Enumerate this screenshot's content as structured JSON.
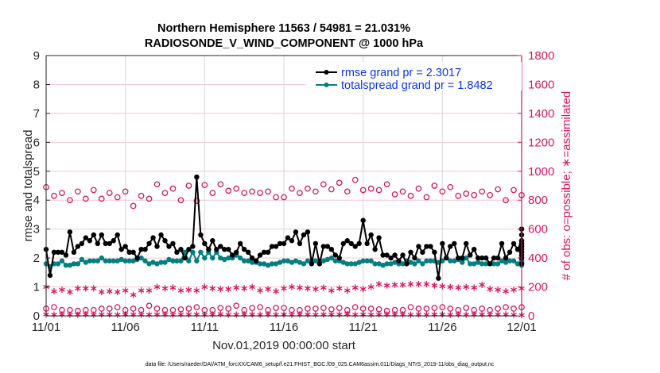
{
  "chart_data": {
    "type": "line",
    "title": [
      "Northern Hemisphere 11563 / 54981 = 21.031%",
      "RADIOSONDE_V_WIND_COMPONENT @ 1000 hPa"
    ],
    "xlabel": "Nov.01,2019 00:00:00 start",
    "ylabel": "rmse and totalspread",
    "ylabel_right": "# of obs: o=possible; ∗=assimilated",
    "footnote": "data file: /Users/raeder/DAI/ATM_forcXX/CAM6_setup/f.e21.FHIST_BGC.f09_025.CAM6assim.011/Diags_NTrS_2019-11/obs_diag_output.nc",
    "xlim": [
      0,
      30
    ],
    "ylim": [
      0,
      9
    ],
    "ylim_right": [
      0,
      1800
    ],
    "x_ticks": [
      {
        "value": 0,
        "label": "11/01"
      },
      {
        "value": 5,
        "label": "11/06"
      },
      {
        "value": 10,
        "label": "11/11"
      },
      {
        "value": 15,
        "label": "11/16"
      },
      {
        "value": 20,
        "label": "11/21"
      },
      {
        "value": 25,
        "label": "11/26"
      },
      {
        "value": 30,
        "label": "12/01"
      }
    ],
    "y_ticks": [
      0,
      1,
      2,
      3,
      4,
      5,
      6,
      7,
      8,
      9
    ],
    "y_ticks_right": [
      0,
      200,
      400,
      600,
      800,
      1000,
      1200,
      1400,
      1600,
      1800
    ],
    "grid": true,
    "legend_position": "top-right",
    "colors": {
      "rmse": "#000000",
      "totalspread": "#008080",
      "obs": "#d6185e",
      "legend_text": "#0b35f5",
      "grid": "#f2c6d8",
      "grid_x": "#d9d9d9"
    },
    "x_step_series": 0.25,
    "series": [
      {
        "name": "rmse grand pr = 2.3017",
        "key": "rmse",
        "axis": "left",
        "values": [
          2.3,
          1.4,
          2.2,
          2.2,
          2.2,
          2.1,
          2.9,
          2.2,
          2.4,
          2.5,
          2.7,
          2.6,
          2.8,
          2.5,
          2.8,
          2.5,
          2.5,
          2.6,
          2.8,
          2.3,
          2.4,
          2.2,
          2.2,
          2.0,
          2.3,
          2.3,
          2.5,
          2.7,
          2.4,
          2.8,
          2.6,
          2.4,
          2.5,
          2.2,
          2.3,
          2.0,
          2.3,
          2.4,
          4.8,
          2.8,
          2.5,
          2.3,
          2.6,
          2.3,
          2.4,
          2.3,
          2.3,
          2.1,
          2.2,
          2.5,
          2.3,
          2.2,
          2.0,
          1.9,
          2.1,
          2.2,
          2.2,
          2.4,
          2.4,
          2.5,
          2.5,
          2.7,
          2.6,
          2.9,
          2.5,
          2.8,
          2.9,
          1.8,
          2.5,
          1.8,
          2.4,
          2.4,
          2.3,
          2.1,
          2.0,
          2.5,
          2.6,
          2.5,
          2.4,
          2.5,
          3.3,
          2.5,
          2.8,
          2.3,
          2.7,
          2.1,
          2.1,
          2.0,
          2.1,
          1.9,
          2.1,
          1.8,
          2.2,
          2.0,
          2.4,
          2.2,
          2.4,
          2.4,
          2.2,
          1.3,
          2.5,
          2.0,
          2.4,
          2.5,
          2.0,
          2.0,
          2.5,
          2.1,
          2.3,
          2.0,
          2.0,
          2.0,
          1.8,
          2.0,
          2.0,
          2.5,
          2.0,
          2.2,
          2.5,
          2.3,
          2.6,
          2.5,
          2.4,
          2.5,
          2.0,
          2.2,
          2.1,
          2.4,
          2.8,
          2.3,
          3.0,
          2.4,
          3.0,
          2.5,
          2.5,
          2.2,
          2.3,
          2.0,
          2.2,
          2.6,
          2.4,
          1.8,
          2.3,
          1.8
        ]
      },
      {
        "name": "totalspread grand pr = 1.8482",
        "key": "totalspread",
        "axis": "left",
        "values": [
          1.8,
          1.7,
          1.8,
          1.8,
          1.9,
          1.75,
          1.75,
          1.8,
          1.8,
          1.95,
          1.85,
          1.9,
          1.9,
          1.9,
          2.0,
          1.9,
          1.9,
          1.9,
          1.9,
          1.95,
          1.9,
          1.9,
          1.9,
          1.95,
          2.0,
          1.9,
          1.8,
          1.85,
          1.8,
          1.85,
          1.85,
          1.95,
          1.9,
          1.9,
          1.9,
          2.2,
          1.9,
          2.2,
          1.9,
          2.2,
          2.0,
          2.2,
          2.0,
          2.2,
          2.0,
          1.95,
          2.0,
          2.0,
          2.1,
          2.0,
          1.9,
          1.9,
          1.85,
          1.85,
          1.8,
          1.8,
          1.75,
          1.8,
          1.8,
          1.85,
          1.9,
          1.9,
          1.85,
          1.9,
          1.85,
          1.8,
          1.9,
          1.9,
          1.9,
          1.9,
          1.9,
          1.95,
          2.0,
          1.9,
          1.9,
          1.85,
          1.8,
          1.8,
          1.8,
          1.85,
          1.9,
          1.9,
          1.9,
          1.8,
          1.8,
          1.75,
          1.8,
          1.8,
          1.85,
          1.8,
          1.8,
          1.9,
          1.85,
          1.8,
          1.9,
          1.8,
          1.9,
          1.9,
          1.9,
          1.85,
          1.9,
          2.0,
          1.9,
          1.9,
          1.95,
          1.85,
          2.0,
          1.8,
          1.8,
          1.85,
          1.8,
          1.8,
          1.8,
          1.8,
          1.8,
          1.9,
          1.85,
          1.9,
          1.9,
          1.8,
          1.9,
          2.0,
          1.9,
          1.9,
          1.8,
          1.8,
          1.8,
          1.85,
          1.8,
          1.8,
          1.9,
          1.75,
          1.8
        ]
      },
      {
        "name": "possible (o)",
        "key": "obs_possible",
        "axis": "right",
        "x_step": 0.5,
        "marker": "circle",
        "values_upper": [
          890,
          830,
          850,
          800,
          860,
          810,
          870,
          810,
          850,
          820,
          860,
          760,
          830,
          810,
          910,
          850,
          880,
          800,
          900,
          795,
          905,
          850,
          910,
          865,
          880,
          850,
          860,
          850,
          860,
          820,
          820,
          880,
          850,
          880,
          860,
          910,
          875,
          920,
          860,
          940,
          870,
          880,
          870,
          910,
          840,
          860,
          830,
          880,
          820,
          900,
          860,
          890,
          830,
          845,
          835,
          860,
          835,
          875,
          800,
          870,
          835
        ],
        "values_lower": [
          50,
          60,
          40,
          40,
          35,
          40,
          40,
          50,
          50,
          60,
          40,
          50,
          40,
          70,
          50,
          40,
          40,
          45,
          50,
          60,
          40,
          40,
          55,
          50,
          70,
          40,
          55,
          60,
          40,
          55,
          55,
          40,
          40,
          50,
          50,
          55,
          45,
          55,
          40,
          60,
          50,
          50,
          45,
          35,
          40,
          40,
          60,
          50,
          50,
          55,
          60,
          50,
          40,
          55,
          40,
          50,
          40,
          50,
          60,
          50,
          60
        ]
      },
      {
        "name": "assimilated (∗)",
        "key": "obs_assimilated",
        "axis": "right",
        "x_step": 0.5,
        "marker": "asterisk",
        "values_upper": [
          200,
          170,
          180,
          165,
          190,
          190,
          190,
          165,
          170,
          165,
          175,
          145,
          175,
          175,
          200,
          190,
          195,
          175,
          180,
          175,
          200,
          190,
          185,
          185,
          195,
          190,
          200,
          175,
          185,
          170,
          190,
          200,
          195,
          190,
          185,
          195,
          175,
          190,
          175,
          195,
          185,
          200,
          220,
          210,
          215,
          215,
          220,
          220,
          220,
          210,
          205,
          200,
          195,
          200,
          195,
          215,
          185,
          180,
          170,
          180,
          190,
          195,
          195,
          195,
          195,
          200
        ],
        "values_lower": [
          10,
          8,
          10,
          8,
          8,
          10,
          8,
          10,
          10,
          8,
          10,
          10,
          8,
          8,
          10,
          10,
          8,
          10,
          10,
          10,
          8,
          10,
          12,
          8,
          8,
          10,
          10,
          8,
          10,
          8,
          10,
          8,
          10,
          10,
          8,
          10,
          10,
          10,
          12,
          8,
          10,
          8,
          10,
          10,
          10,
          10,
          8,
          10,
          8,
          10,
          10,
          8,
          10,
          8,
          10,
          10,
          8,
          10,
          10,
          8,
          5
        ]
      }
    ]
  }
}
